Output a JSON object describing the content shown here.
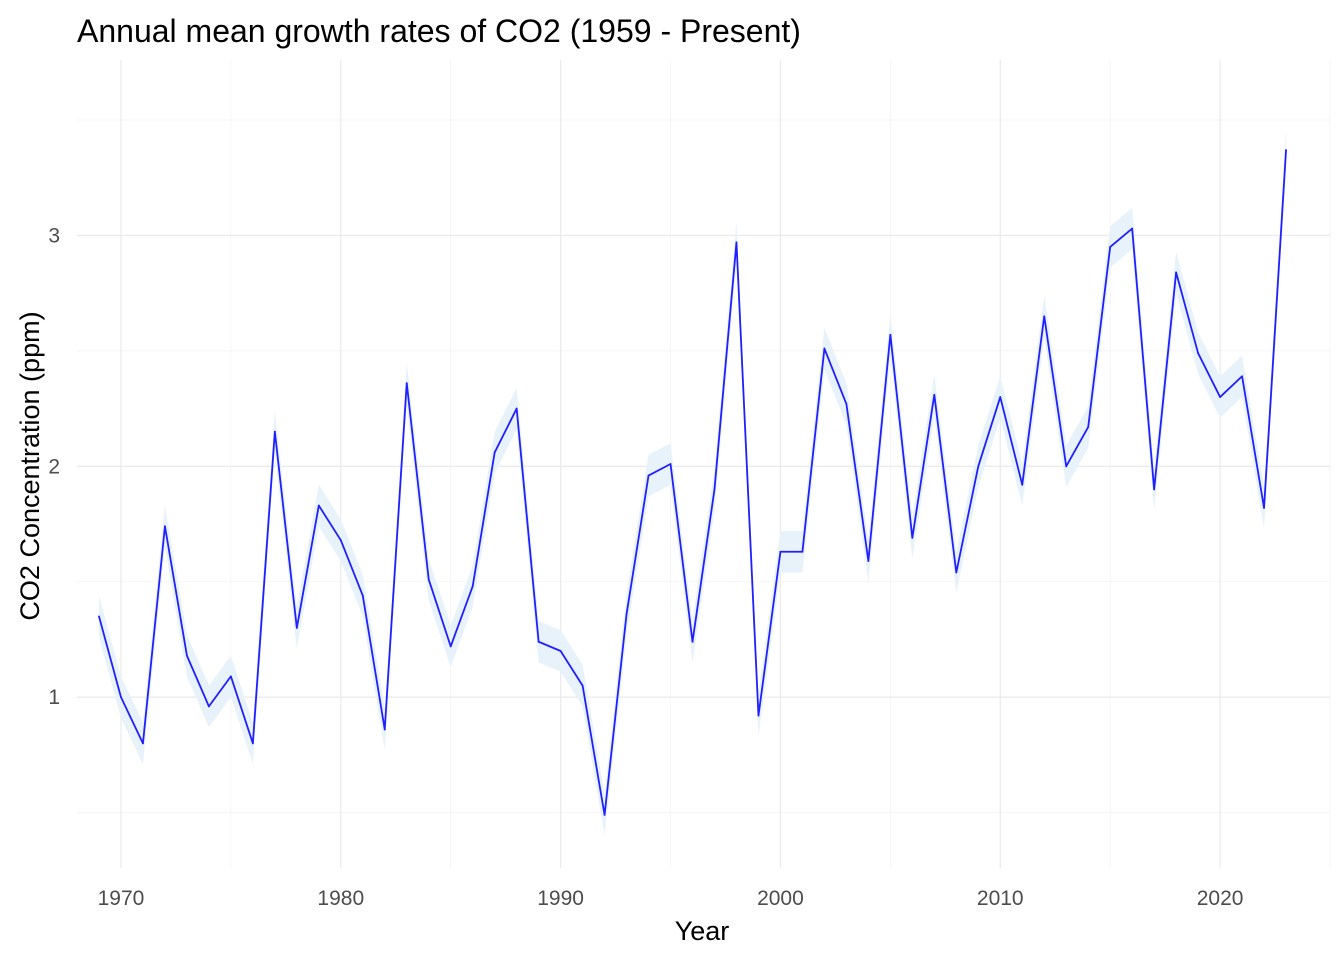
{
  "chart_data": {
    "type": "line",
    "title": "Annual mean growth rates of CO2 (1959 - Present)",
    "xlabel": "Year",
    "ylabel": "CO2 Concentration (ppm)",
    "xlim": [
      1968,
      2025
    ],
    "ylim": [
      0.26,
      3.76
    ],
    "x_ticks": [
      1970,
      1980,
      1990,
      2000,
      2010,
      2020
    ],
    "x_minor_ticks": [
      1975,
      1985,
      1995,
      2005,
      2015,
      2025
    ],
    "y_ticks": [
      1,
      2,
      3
    ],
    "y_minor_ticks": [
      0.5,
      1.5,
      2.5,
      3.5
    ],
    "grid": true,
    "legend": "none",
    "line_color": "#2020ff",
    "band_color": "#e8f2fa",
    "band_halfwidth": 0.09,
    "series": [
      {
        "x": [
          1969,
          1970,
          1971,
          1972,
          1973,
          1974,
          1975,
          1976,
          1977,
          1978,
          1979,
          1980,
          1981,
          1982,
          1983,
          1984,
          1985,
          1986,
          1987,
          1988,
          1989,
          1990,
          1991,
          1992,
          1993,
          1994,
          1995,
          1996,
          1997,
          1998,
          1999,
          2000,
          2001,
          2002,
          2003,
          2004,
          2005,
          2006,
          2007,
          2008,
          2009,
          2010,
          2011,
          2012,
          2013,
          2014,
          2015,
          2016,
          2017,
          2018,
          2019,
          2020,
          2021,
          2022,
          2023
        ],
        "y": [
          1.35,
          1.0,
          0.8,
          1.74,
          1.18,
          0.96,
          1.09,
          0.8,
          2.15,
          1.3,
          1.83,
          1.68,
          1.44,
          0.86,
          2.36,
          1.51,
          1.22,
          1.48,
          2.06,
          2.25,
          1.24,
          1.2,
          1.05,
          0.49,
          1.36,
          1.96,
          2.01,
          1.24,
          1.9,
          2.97,
          0.92,
          1.63,
          1.63,
          2.51,
          2.27,
          1.59,
          2.57,
          1.69,
          2.31,
          1.54,
          2.0,
          2.3,
          1.92,
          2.65,
          2.0,
          2.17,
          2.95,
          3.03,
          1.9,
          2.84,
          2.49,
          2.3,
          2.39,
          1.82,
          3.37
        ]
      }
    ]
  }
}
